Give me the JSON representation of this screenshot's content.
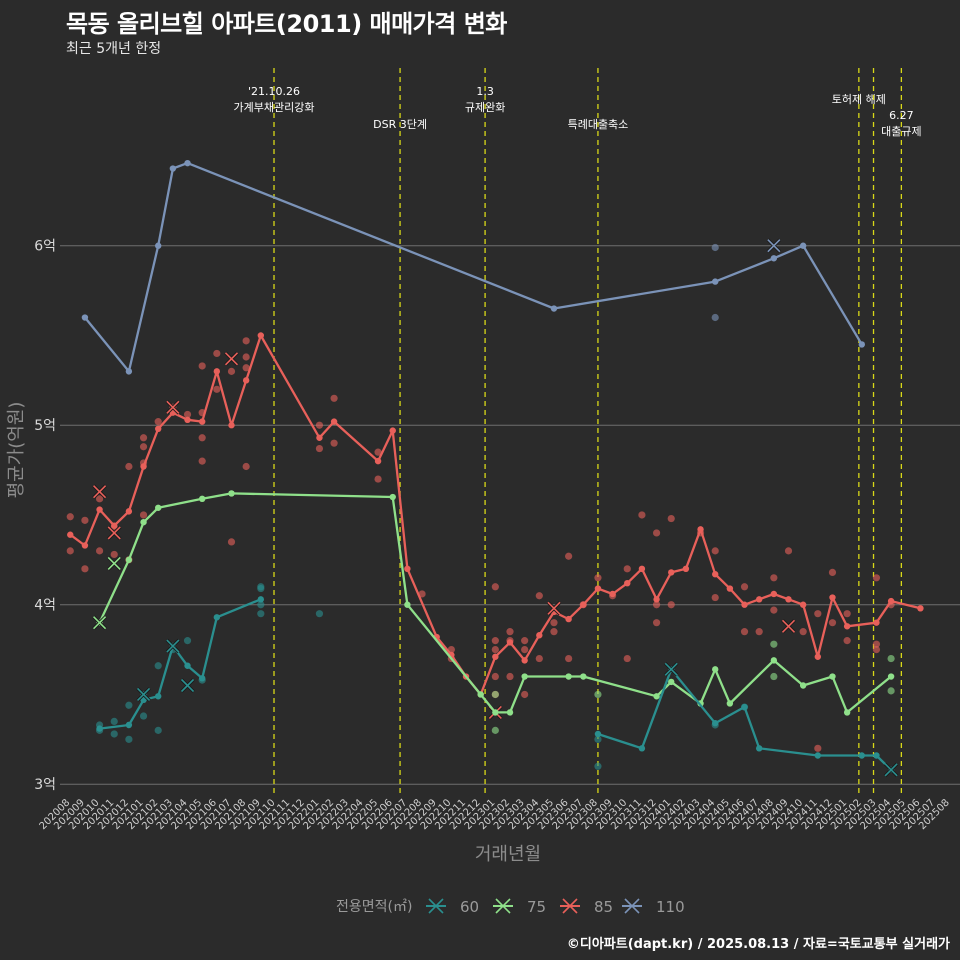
{
  "header": {
    "title": "목동 올리브힐 아파트(2011) 매매가격 변화",
    "subtitle": "최근 5개년 한정",
    "caption": "©디아파트(dapt.kr) / 2025.08.13 / 자료=국토교통부 실거래가"
  },
  "chart_data": {
    "type": "line",
    "xlabel": "거래년월",
    "ylabel": "평균가(억원)",
    "ylim": [
      2.94,
      6.99
    ],
    "y_ticks": [
      {
        "value": 3,
        "label": "3억"
      },
      {
        "value": 4,
        "label": "4억"
      },
      {
        "value": 5,
        "label": "5억"
      },
      {
        "value": 6,
        "label": "6억"
      }
    ],
    "categories": [
      "202008",
      "202009",
      "202010",
      "202011",
      "202012",
      "202101",
      "202102",
      "202103",
      "202104",
      "202105",
      "202106",
      "202107",
      "202108",
      "202109",
      "202110",
      "202111",
      "202112",
      "202201",
      "202202",
      "202203",
      "202204",
      "202205",
      "202206",
      "202207",
      "202208",
      "202209",
      "202210",
      "202211",
      "202212",
      "202301",
      "202302",
      "202303",
      "202304",
      "202305",
      "202306",
      "202307",
      "202308",
      "202309",
      "202310",
      "202311",
      "202312",
      "202401",
      "202402",
      "202403",
      "202404",
      "202405",
      "202406",
      "202407",
      "202408",
      "202409",
      "202410",
      "202411",
      "202412",
      "202501",
      "202502",
      "202503",
      "202504",
      "202505",
      "202506",
      "202507",
      "202508"
    ],
    "events": [
      {
        "x": 13.9,
        "labels": [
          "'21.10.26",
          "가계부채관리강화"
        ]
      },
      {
        "x": 22.5,
        "labels": [
          "DSR 3단계"
        ]
      },
      {
        "x": 28.3,
        "labels": [
          "1.3",
          "규제완화"
        ]
      },
      {
        "x": 36.0,
        "labels": [
          "특례대출축소"
        ]
      },
      {
        "x": 53.8,
        "labels": [
          "토허제 해제"
        ]
      },
      {
        "x": 54.8,
        "labels": []
      },
      {
        "x": 56.7,
        "labels": [
          "6.27",
          "대출규제"
        ]
      }
    ],
    "legend": {
      "title": "전용면적(㎡)",
      "position": "bottom"
    },
    "series": [
      {
        "name": "60",
        "color": "#2a8f8f",
        "line": [
          [
            2,
            3.31
          ],
          [
            4,
            3.33
          ],
          [
            5,
            3.47
          ],
          [
            6,
            3.49
          ],
          [
            7,
            3.77
          ],
          [
            8,
            3.66
          ],
          [
            9,
            3.59
          ],
          [
            10,
            3.93
          ],
          [
            13,
            4.03
          ],
          [
            null,
            null
          ],
          [
            36,
            3.28
          ],
          [
            39,
            3.2
          ],
          [
            41,
            3.64
          ],
          [
            44,
            3.34
          ],
          [
            46,
            3.43
          ],
          [
            47,
            3.2
          ],
          [
            51,
            3.16
          ],
          [
            54,
            3.16
          ],
          [
            55,
            3.16
          ],
          [
            56,
            3.08
          ]
        ],
        "points": [
          [
            2,
            3.33
          ],
          [
            2,
            3.3
          ],
          [
            3,
            3.35
          ],
          [
            3,
            3.28
          ],
          [
            4,
            3.25
          ],
          [
            4,
            3.44
          ],
          [
            5,
            3.5
          ],
          [
            5,
            3.38
          ],
          [
            6,
            3.66
          ],
          [
            6,
            3.3
          ],
          [
            7,
            3.75
          ],
          [
            8,
            3.8
          ],
          [
            9,
            3.58
          ],
          [
            13,
            4.09
          ],
          [
            13,
            4.1
          ],
          [
            13,
            4.0
          ],
          [
            13,
            3.95
          ],
          [
            17,
            3.95
          ],
          [
            36,
            3.1
          ],
          [
            36,
            3.25
          ],
          [
            44,
            3.33
          ],
          [
            46,
            3.43
          ]
        ],
        "crosses": [
          [
            5,
            3.5
          ],
          [
            7,
            3.77
          ],
          [
            8,
            3.55
          ],
          [
            41,
            3.64
          ],
          [
            56,
            3.08
          ]
        ]
      },
      {
        "name": "75",
        "color": "#8fe08a",
        "line": [
          [
            2,
            3.9
          ],
          [
            4,
            4.25
          ],
          [
            5,
            4.46
          ],
          [
            6,
            4.54
          ],
          [
            9,
            4.59
          ],
          [
            11,
            4.62
          ],
          [
            22,
            4.6
          ],
          [
            23,
            4.0
          ],
          [
            28,
            3.5
          ],
          [
            29,
            3.4
          ],
          [
            30,
            3.4
          ],
          [
            31,
            3.6
          ],
          [
            34,
            3.6
          ],
          [
            35,
            3.6
          ],
          [
            40,
            3.49
          ],
          [
            41,
            3.57
          ],
          [
            43,
            3.45
          ],
          [
            44,
            3.64
          ],
          [
            45,
            3.45
          ],
          [
            48,
            3.69
          ],
          [
            50,
            3.55
          ],
          [
            52,
            3.6
          ],
          [
            53,
            3.4
          ],
          [
            56,
            3.6
          ]
        ],
        "points": [
          [
            29,
            3.5
          ],
          [
            29,
            3.3
          ],
          [
            36,
            3.5
          ],
          [
            48,
            3.6
          ],
          [
            48,
            3.78
          ],
          [
            56,
            3.7
          ],
          [
            56,
            3.52
          ]
        ],
        "crosses": [
          [
            2,
            3.9
          ],
          [
            3,
            4.23
          ]
        ]
      },
      {
        "name": "85",
        "color": "#e8605a",
        "line": [
          [
            0,
            4.39
          ],
          [
            1,
            4.33
          ],
          [
            2,
            4.53
          ],
          [
            3,
            4.44
          ],
          [
            4,
            4.52
          ],
          [
            5,
            4.77
          ],
          [
            6,
            4.98
          ],
          [
            7,
            5.07
          ],
          [
            8,
            5.03
          ],
          [
            9,
            5.02
          ],
          [
            10,
            5.3
          ],
          [
            11,
            5.0
          ],
          [
            12,
            5.25
          ],
          [
            13,
            5.5
          ],
          [
            17,
            4.93
          ],
          [
            18,
            5.02
          ],
          [
            21,
            4.8
          ],
          [
            22,
            4.97
          ],
          [
            23,
            4.2
          ],
          [
            25,
            3.82
          ],
          [
            26,
            3.72
          ],
          [
            27,
            3.6
          ],
          [
            28,
            3.5
          ],
          [
            29,
            3.71
          ],
          [
            30,
            3.79
          ],
          [
            31,
            3.69
          ],
          [
            32,
            3.83
          ],
          [
            33,
            3.96
          ],
          [
            34,
            3.92
          ],
          [
            35,
            4.0
          ],
          [
            36,
            4.09
          ],
          [
            37,
            4.06
          ],
          [
            38,
            4.12
          ],
          [
            39,
            4.2
          ],
          [
            40,
            4.03
          ],
          [
            41,
            4.18
          ],
          [
            42,
            4.2
          ],
          [
            43,
            4.42
          ],
          [
            44,
            4.17
          ],
          [
            45,
            4.09
          ],
          [
            46,
            4.0
          ],
          [
            47,
            4.03
          ],
          [
            48,
            4.06
          ],
          [
            49,
            4.03
          ],
          [
            50,
            4.0
          ],
          [
            51,
            3.71
          ],
          [
            52,
            4.04
          ],
          [
            53,
            3.88
          ],
          [
            55,
            3.9
          ],
          [
            56,
            4.02
          ],
          [
            58,
            3.98
          ]
        ],
        "points": [
          [
            0,
            4.49
          ],
          [
            0,
            4.3
          ],
          [
            1,
            4.47
          ],
          [
            1,
            4.2
          ],
          [
            2,
            4.59
          ],
          [
            2,
            4.3
          ],
          [
            3,
            4.43
          ],
          [
            3,
            4.28
          ],
          [
            4,
            4.77
          ],
          [
            4,
            4.25
          ],
          [
            5,
            4.93
          ],
          [
            5,
            4.88
          ],
          [
            5,
            4.79
          ],
          [
            5,
            4.5
          ],
          [
            6,
            5.02
          ],
          [
            7,
            5.1
          ],
          [
            8,
            5.06
          ],
          [
            9,
            5.33
          ],
          [
            9,
            5.07
          ],
          [
            9,
            4.93
          ],
          [
            9,
            4.8
          ],
          [
            10,
            5.4
          ],
          [
            10,
            5.2
          ],
          [
            11,
            5.3
          ],
          [
            11,
            4.35
          ],
          [
            12,
            5.47
          ],
          [
            12,
            5.38
          ],
          [
            12,
            5.32
          ],
          [
            12,
            4.77
          ],
          [
            17,
            5.0
          ],
          [
            17,
            4.87
          ],
          [
            18,
            5.15
          ],
          [
            18,
            4.9
          ],
          [
            21,
            4.85
          ],
          [
            21,
            4.7
          ],
          [
            24,
            4.06
          ],
          [
            26,
            3.75
          ],
          [
            26,
            3.7
          ],
          [
            29,
            3.8
          ],
          [
            29,
            3.75
          ],
          [
            29,
            3.6
          ],
          [
            29,
            3.5
          ],
          [
            29,
            4.1
          ],
          [
            30,
            3.85
          ],
          [
            30,
            3.8
          ],
          [
            30,
            3.6
          ],
          [
            31,
            3.8
          ],
          [
            31,
            3.75
          ],
          [
            31,
            3.5
          ],
          [
            32,
            3.7
          ],
          [
            32,
            4.05
          ],
          [
            33,
            3.9
          ],
          [
            33,
            3.85
          ],
          [
            34,
            3.7
          ],
          [
            34,
            4.27
          ],
          [
            35,
            4.0
          ],
          [
            36,
            4.15
          ],
          [
            37,
            4.05
          ],
          [
            38,
            4.2
          ],
          [
            38,
            3.7
          ],
          [
            39,
            4.5
          ],
          [
            40,
            4.4
          ],
          [
            40,
            4.0
          ],
          [
            40,
            3.9
          ],
          [
            41,
            4.0
          ],
          [
            41,
            4.48
          ],
          [
            43,
            4.4
          ],
          [
            44,
            4.3
          ],
          [
            44,
            4.04
          ],
          [
            46,
            4.1
          ],
          [
            46,
            3.85
          ],
          [
            47,
            3.85
          ],
          [
            48,
            4.15
          ],
          [
            48,
            3.97
          ],
          [
            49,
            4.3
          ],
          [
            50,
            3.85
          ],
          [
            51,
            3.95
          ],
          [
            51,
            3.2
          ],
          [
            52,
            4.18
          ],
          [
            52,
            3.9
          ],
          [
            53,
            3.8
          ],
          [
            53,
            3.95
          ],
          [
            55,
            4.15
          ],
          [
            55,
            3.78
          ],
          [
            55,
            3.75
          ],
          [
            56,
            4.0
          ]
        ],
        "crosses": [
          [
            2,
            4.63
          ],
          [
            3,
            4.4
          ],
          [
            7,
            5.1
          ],
          [
            11,
            5.37
          ],
          [
            29,
            3.4
          ],
          [
            33,
            3.98
          ],
          [
            49,
            3.88
          ]
        ]
      },
      {
        "name": "110",
        "color": "#7b93b8",
        "line": [
          [
            1,
            5.6
          ],
          [
            4,
            5.3
          ],
          [
            6,
            6.0
          ],
          [
            7,
            6.43
          ],
          [
            8,
            6.46
          ],
          [
            33,
            5.65
          ],
          [
            44,
            5.8
          ],
          [
            48,
            5.93
          ],
          [
            50,
            6.0
          ],
          [
            54,
            5.45
          ]
        ],
        "points": [
          [
            44,
            5.99
          ],
          [
            44,
            5.6
          ]
        ],
        "crosses": [
          [
            48,
            6.0
          ]
        ]
      }
    ]
  }
}
